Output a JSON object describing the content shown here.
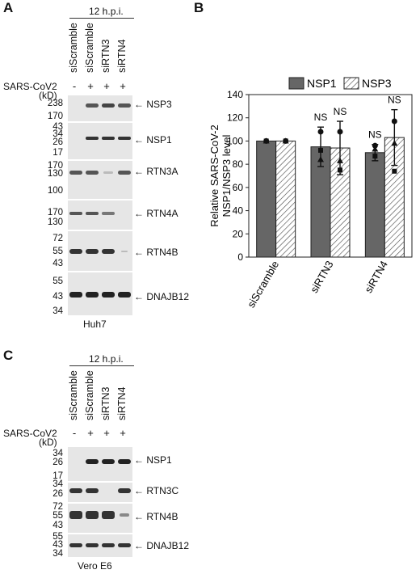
{
  "panel_a": {
    "letter": "A",
    "timepoint": "12 h.p.i.",
    "lanes": [
      "siScramble",
      "siScramble",
      "siRTN3",
      "siRTN4"
    ],
    "virus_label": "SARS-CoV2",
    "virus_signs": [
      "-",
      "+",
      "+",
      "+"
    ],
    "kd_label": "(kD)",
    "cell_line": "Huh7",
    "blots": [
      {
        "name": "NSP3",
        "markers": [
          "238",
          "170"
        ]
      },
      {
        "name": "NSP1",
        "markers": [
          "43",
          "34",
          "26",
          "17"
        ]
      },
      {
        "name": "RTN3A",
        "markers": [
          "170",
          "130",
          "100"
        ]
      },
      {
        "name": "RTN4A",
        "markers": [
          "170",
          "130"
        ]
      },
      {
        "name": "RTN4B",
        "markers": [
          "72",
          "55",
          "43"
        ]
      },
      {
        "name": "DNAJB12",
        "markers": [
          "55",
          "43",
          "34"
        ]
      }
    ]
  },
  "panel_b": {
    "letter": "B",
    "chart_data": {
      "type": "bar",
      "categories": [
        "siScramble",
        "siRTN3",
        "siRTN4"
      ],
      "series": [
        {
          "name": "NSP1",
          "values": [
            100,
            95,
            90
          ],
          "errors": [
            0,
            17,
            7
          ],
          "color": "#666666"
        },
        {
          "name": "NSP3",
          "values": [
            100,
            94,
            103
          ],
          "errors": [
            0,
            23,
            24
          ],
          "color": "hatched"
        }
      ],
      "points": {
        "NSP1": [
          [
            100,
            100,
            100
          ],
          [
            108,
            84,
            92
          ],
          [
            96,
            93,
            87
          ]
        ],
        "NSP3": [
          [
            100,
            100,
            100
          ],
          [
            108,
            83,
            75
          ],
          [
            117,
            98,
            74
          ]
        ]
      },
      "annotations": [
        {
          "category": "siRTN3",
          "series": "NSP1",
          "text": "NS"
        },
        {
          "category": "siRTN3",
          "series": "NSP3",
          "text": "NS"
        },
        {
          "category": "siRTN4",
          "series": "NSP1",
          "text": "NS"
        },
        {
          "category": "siRTN4",
          "series": "NSP3",
          "text": "NS"
        }
      ],
      "ylabel_line1": "Relative SARS-CoV-2",
      "ylabel_line2": "NSP1/NSP3 level",
      "ylim": [
        0,
        140
      ],
      "yticks": [
        0,
        20,
        40,
        60,
        80,
        100,
        120,
        140
      ],
      "legend_placement": "top"
    }
  },
  "panel_c": {
    "letter": "C",
    "timepoint": "12 h.p.i.",
    "lanes": [
      "siScramble",
      "siScramble",
      "siRTN3",
      "siRTN4"
    ],
    "virus_label": "SARS-CoV2",
    "virus_signs": [
      "-",
      "+",
      "+",
      "+"
    ],
    "kd_label": "(kD)",
    "cell_line": "Vero E6",
    "blots": [
      {
        "name": "NSP1",
        "markers": [
          "34",
          "26",
          "17"
        ]
      },
      {
        "name": "RTN3C",
        "markers": [
          "34",
          "26"
        ]
      },
      {
        "name": "RTN4B",
        "markers": [
          "72",
          "55",
          "43"
        ]
      },
      {
        "name": "DNAJB12",
        "markers": [
          "55",
          "43",
          "34"
        ]
      }
    ]
  }
}
